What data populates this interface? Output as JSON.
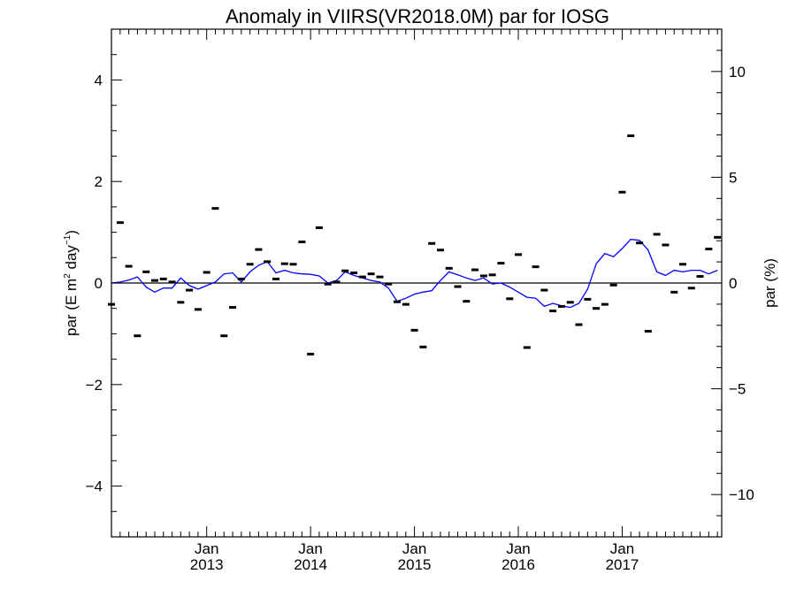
{
  "chart_data": {
    "type": "scatter",
    "title": "Anomaly in VIIRS(VR2018.0M) par for IOSG",
    "ylabel_left_parts": [
      "par (E m",
      "2",
      " day",
      "−1",
      ")"
    ],
    "ylabel_right": "par (%)",
    "xlim": [
      2012.083,
      2017.958
    ],
    "ylim_left": [
      -5,
      5
    ],
    "ylim_right": [
      -12,
      12
    ],
    "y_ticks_left": [
      {
        "value": -4,
        "label": "−4"
      },
      {
        "value": -2,
        "label": "−2"
      },
      {
        "value": 0,
        "label": "0"
      },
      {
        "value": 2,
        "label": "2"
      },
      {
        "value": 4,
        "label": "4"
      }
    ],
    "y_ticks_right": [
      {
        "value": -10,
        "label": "−10"
      },
      {
        "value": -5,
        "label": "−5"
      },
      {
        "value": 0,
        "label": "0"
      },
      {
        "value": 5,
        "label": "5"
      },
      {
        "value": 10,
        "label": "10"
      }
    ],
    "x_ticks": [
      {
        "value": 2013.0,
        "month": "Jan",
        "year": "2013"
      },
      {
        "value": 2014.0,
        "month": "Jan",
        "year": "2014"
      },
      {
        "value": 2015.0,
        "month": "Jan",
        "year": "2015"
      },
      {
        "value": 2016.0,
        "month": "Jan",
        "year": "2016"
      },
      {
        "value": 2017.0,
        "month": "Jan",
        "year": "2017"
      }
    ],
    "zero_line": 0,
    "series": [
      {
        "kind": "points",
        "color": "#000000",
        "x": [
          2012.083,
          2012.167,
          2012.25,
          2012.333,
          2012.417,
          2012.5,
          2012.583,
          2012.667,
          2012.75,
          2012.833,
          2012.917,
          2013.0,
          2013.083,
          2013.167,
          2013.25,
          2013.333,
          2013.417,
          2013.5,
          2013.583,
          2013.667,
          2013.75,
          2013.833,
          2013.917,
          2014.0,
          2014.083,
          2014.167,
          2014.25,
          2014.333,
          2014.417,
          2014.5,
          2014.583,
          2014.667,
          2014.75,
          2014.833,
          2014.917,
          2015.0,
          2015.083,
          2015.167,
          2015.25,
          2015.333,
          2015.417,
          2015.5,
          2015.583,
          2015.667,
          2015.75,
          2015.833,
          2015.917,
          2016.0,
          2016.083,
          2016.167,
          2016.25,
          2016.333,
          2016.417,
          2016.5,
          2016.583,
          2016.667,
          2016.75,
          2016.833,
          2016.917,
          2017.0,
          2017.083,
          2017.167,
          2017.25,
          2017.333,
          2017.417,
          2017.5,
          2017.583,
          2017.667,
          2017.75,
          2017.833,
          2017.917
        ],
        "y": [
          -0.42,
          1.19,
          0.33,
          -1.04,
          0.22,
          0.05,
          0.08,
          0.02,
          -0.38,
          -0.14,
          -0.52,
          0.21,
          1.47,
          -1.04,
          -0.48,
          0.08,
          0.37,
          0.66,
          0.42,
          0.08,
          0.38,
          0.37,
          0.81,
          -1.4,
          1.09,
          -0.02,
          0.02,
          0.24,
          0.2,
          0.12,
          0.18,
          0.12,
          -0.02,
          -0.37,
          -0.42,
          -0.93,
          -1.26,
          0.78,
          0.65,
          0.29,
          -0.07,
          -0.36,
          0.26,
          0.14,
          0.16,
          0.39,
          -0.31,
          0.56,
          -1.27,
          0.32,
          -0.14,
          -0.55,
          -0.46,
          -0.38,
          -0.82,
          -0.32,
          -0.5,
          -0.42,
          -0.04,
          1.79,
          2.9,
          0.79,
          -0.95,
          0.96,
          0.75,
          -0.18,
          0.37,
          -0.1,
          0.13,
          0.67,
          0.9
        ]
      },
      {
        "kind": "line",
        "color": "#0000ff",
        "x": [
          2012.083,
          2012.167,
          2012.25,
          2012.333,
          2012.417,
          2012.5,
          2012.583,
          2012.667,
          2012.75,
          2012.833,
          2012.917,
          2013.0,
          2013.083,
          2013.167,
          2013.25,
          2013.333,
          2013.417,
          2013.5,
          2013.583,
          2013.667,
          2013.75,
          2013.833,
          2013.917,
          2014.0,
          2014.083,
          2014.167,
          2014.25,
          2014.333,
          2014.417,
          2014.5,
          2014.583,
          2014.667,
          2014.75,
          2014.833,
          2014.917,
          2015.0,
          2015.083,
          2015.167,
          2015.25,
          2015.333,
          2015.417,
          2015.5,
          2015.583,
          2015.667,
          2015.75,
          2015.833,
          2015.917,
          2016.0,
          2016.083,
          2016.167,
          2016.25,
          2016.333,
          2016.417,
          2016.5,
          2016.583,
          2016.667,
          2016.75,
          2016.833,
          2016.917,
          2017.0,
          2017.083,
          2017.167,
          2017.25,
          2017.333,
          2017.417,
          2017.5,
          2017.583,
          2017.667,
          2017.75,
          2017.833,
          2017.917
        ],
        "y": [
          0.0,
          0.02,
          0.06,
          0.12,
          -0.08,
          -0.18,
          -0.1,
          -0.1,
          0.1,
          -0.05,
          -0.12,
          -0.05,
          0.02,
          0.18,
          0.2,
          0.02,
          0.22,
          0.35,
          0.42,
          0.2,
          0.25,
          0.2,
          0.18,
          0.17,
          0.14,
          0.0,
          0.05,
          0.22,
          0.15,
          0.1,
          0.05,
          0.02,
          -0.1,
          -0.36,
          -0.3,
          -0.22,
          -0.18,
          -0.15,
          0.05,
          0.22,
          0.16,
          0.1,
          0.05,
          0.1,
          -0.02,
          0.0,
          -0.08,
          -0.18,
          -0.28,
          -0.3,
          -0.46,
          -0.4,
          -0.45,
          -0.48,
          -0.4,
          -0.12,
          0.38,
          0.58,
          0.52,
          0.68,
          0.86,
          0.84,
          0.65,
          0.22,
          0.15,
          0.25,
          0.22,
          0.25,
          0.25,
          0.18,
          0.25
        ]
      }
    ]
  }
}
